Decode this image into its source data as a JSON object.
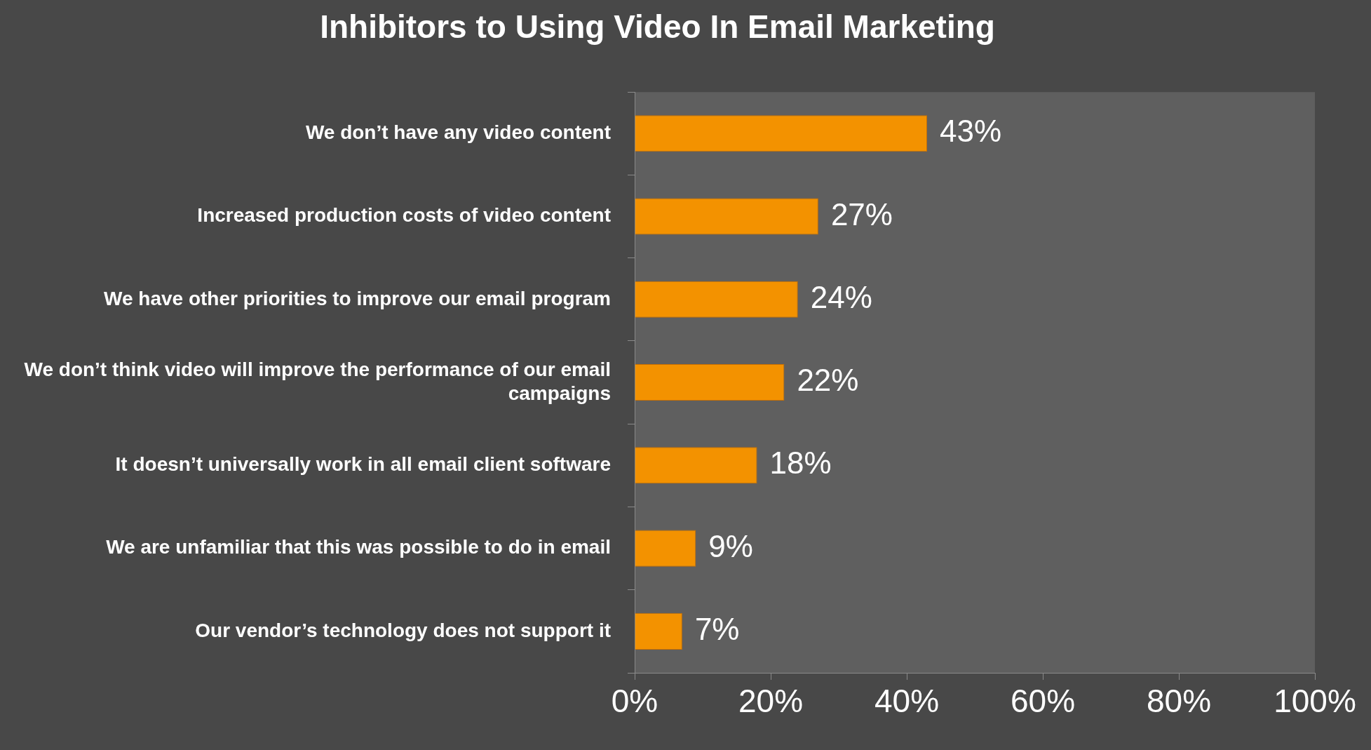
{
  "chart_data": {
    "type": "bar",
    "orientation": "horizontal",
    "title": "Inhibitors to Using Video In Email Marketing",
    "categories": [
      "We don’t have any video content",
      "Increased production costs of video content",
      "We have other priorities to improve our email program",
      "We don’t think video will improve the performance of our email campaigns",
      "It doesn’t universally work in all email client software",
      "We are unfamiliar that this was possible to do in email",
      "Our vendor’s technology does not support it"
    ],
    "values": [
      43,
      27,
      24,
      22,
      18,
      9,
      7
    ],
    "value_labels": [
      "43%",
      "27%",
      "24%",
      "22%",
      "18%",
      "9%",
      "7%"
    ],
    "color": "#f39200",
    "xlim": [
      0,
      100
    ],
    "xticks": [
      {
        "value": 0,
        "label": "0%"
      },
      {
        "value": 20,
        "label": "20%"
      },
      {
        "value": 40,
        "label": "40%"
      },
      {
        "value": 60,
        "label": "60%"
      },
      {
        "value": 80,
        "label": "80%"
      },
      {
        "value": 100,
        "label": "100%"
      }
    ],
    "grid": false
  }
}
